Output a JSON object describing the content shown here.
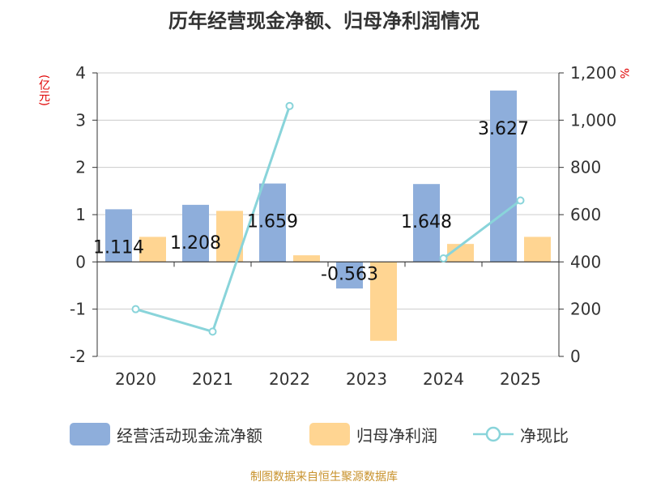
{
  "chart_data": {
    "type": "bar",
    "title": "历年经营现金净额、归母净利润情况",
    "left_axis_unit": "(亿元)",
    "right_axis_unit": "%",
    "categories": [
      "2020",
      "2021",
      "2022",
      "2023",
      "2024",
      "2025"
    ],
    "ylim_left": [
      -2,
      4
    ],
    "yticks_left": [
      "4",
      "3",
      "2",
      "1",
      "0",
      "-1",
      "-2"
    ],
    "ylim_right": [
      0,
      1200
    ],
    "yticks_right": [
      "1,200",
      "1,000",
      "800",
      "600",
      "400",
      "200",
      "0"
    ],
    "series": [
      {
        "name": "经营活动现金流净额",
        "kind": "bar",
        "axis": "left",
        "color": "#8eaedb",
        "values": [
          1.114,
          1.208,
          1.659,
          -0.563,
          1.648,
          3.627
        ],
        "labels": [
          "1.114",
          "1.208",
          "1.659",
          "-0.563",
          "1.648",
          "3.627"
        ]
      },
      {
        "name": "归母净利润",
        "kind": "bar",
        "axis": "left",
        "color": "#ffd592",
        "values": [
          0.53,
          1.08,
          0.14,
          -1.67,
          0.38,
          0.53
        ]
      },
      {
        "name": "净现比",
        "kind": "line",
        "axis": "right",
        "color": "#89d4da",
        "values": [
          200,
          105,
          1060,
          null,
          415,
          660
        ]
      }
    ]
  },
  "source": "制图数据来自恒生聚源数据库"
}
